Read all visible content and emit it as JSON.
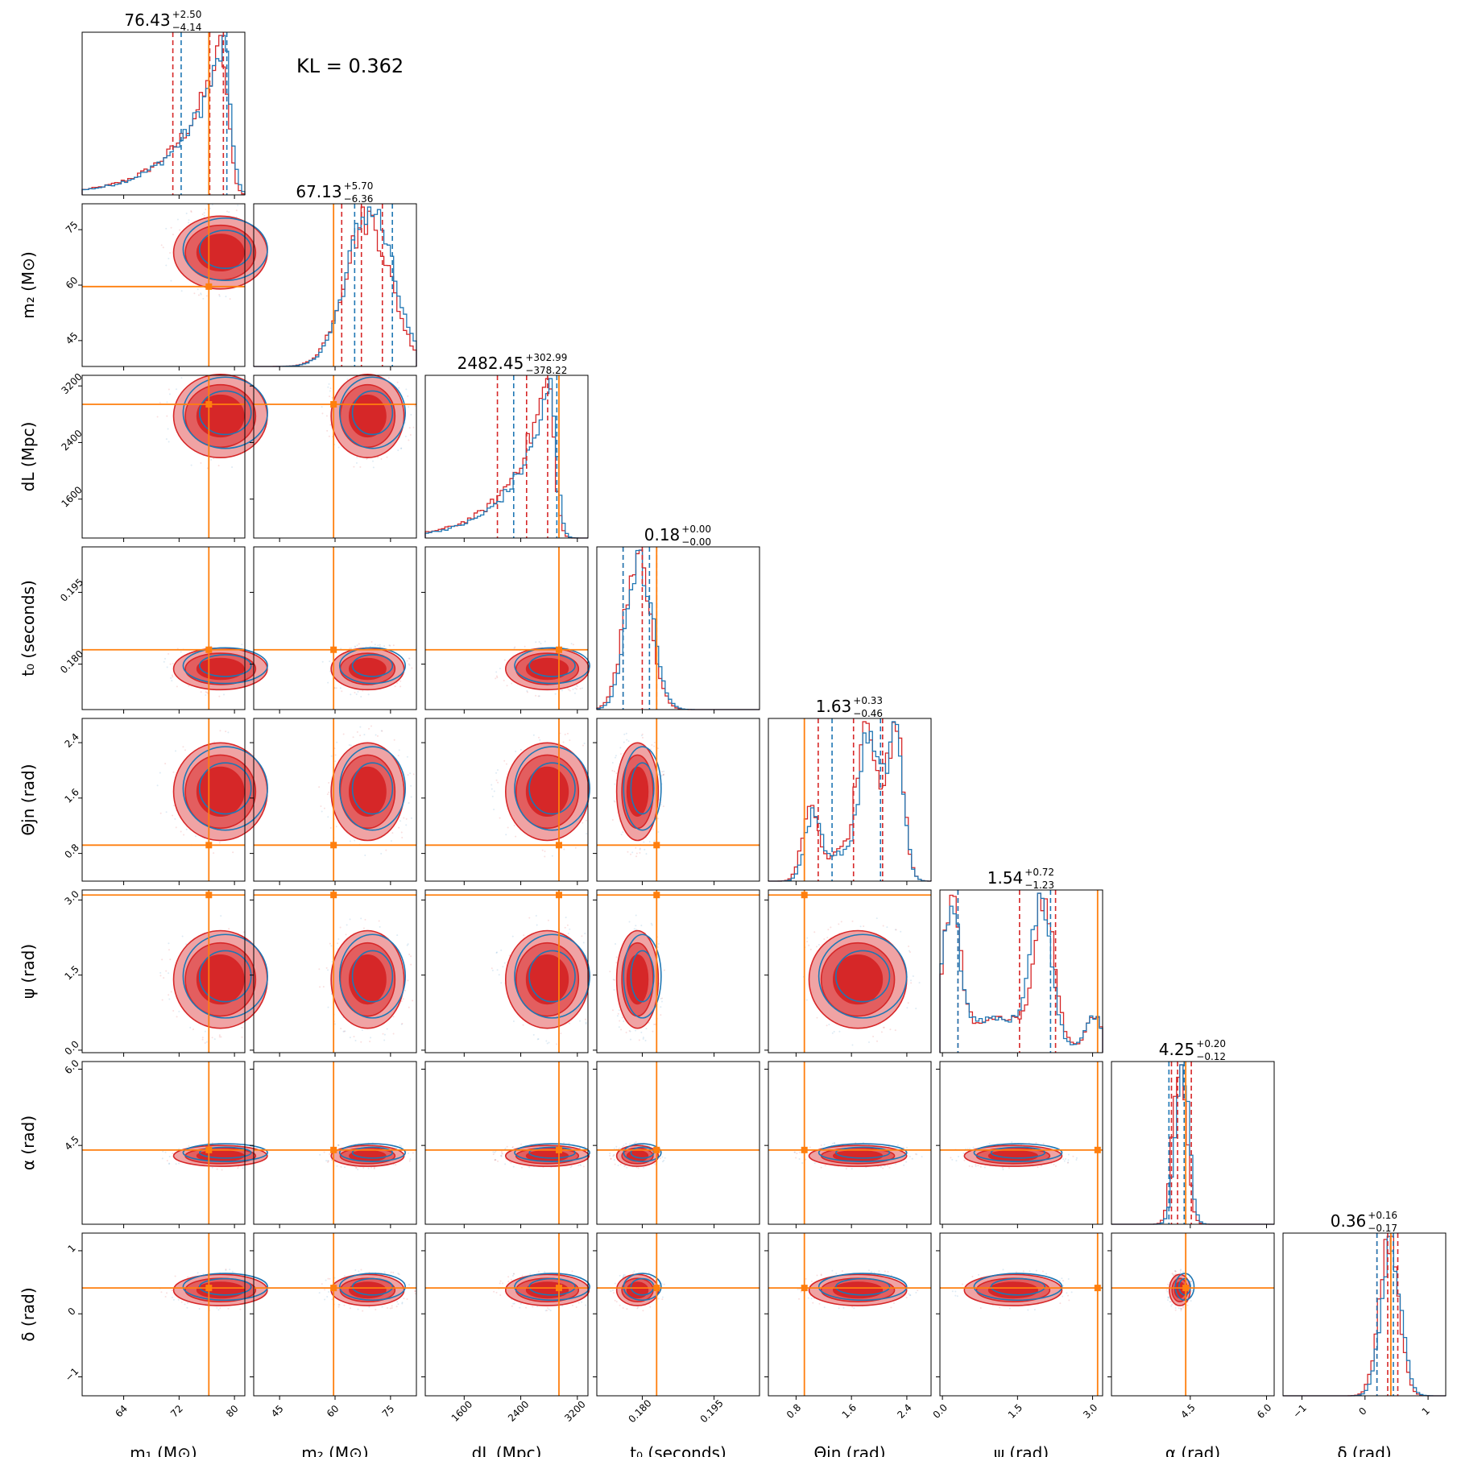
{
  "colors": {
    "red": "#d62728",
    "red_light": "#f0a3a4",
    "red_mid": "#e35e5f",
    "blue": "#1f77b4",
    "orange": "#ff7f0e"
  },
  "kl_text": "KL = 0.362",
  "chart_data": {
    "type": "corner",
    "grid": false,
    "series": [
      {
        "color": "red"
      },
      {
        "color": "blue"
      }
    ],
    "params": [
      {
        "key": "m1",
        "label": "m₁ (M⊙)",
        "ylabel": "",
        "range": [
          58,
          81.5
        ],
        "ticks": [
          64,
          72,
          80
        ],
        "tick_labels": [
          "64",
          "72",
          "80"
        ],
        "median": 76.43,
        "title": "76.43",
        "err_plus": "+2.50",
        "err_minus": "−4.14",
        "truth": 76.3,
        "q_red": [
          71.1,
          78.4
        ],
        "q_blue": [
          72.3,
          78.9
        ],
        "shape": "skew_right",
        "pos": 0.85,
        "width": 0.18
      },
      {
        "key": "m2",
        "label": "m₂ (M⊙)",
        "ylabel": "m₂ (M⊙)",
        "range": [
          38,
          82
        ],
        "ticks": [
          45,
          60,
          75
        ],
        "tick_labels": [
          "45",
          "60",
          "75"
        ],
        "median": 67.13,
        "title": "67.13",
        "err_plus": "+5.70",
        "err_minus": "−6.36",
        "truth": 59.6,
        "q_red": [
          61.8,
          72.8
        ],
        "q_blue": [
          65.3,
          75.5
        ],
        "shape": "normal",
        "pos": 0.7,
        "width": 0.14
      },
      {
        "key": "dL",
        "label": "dL (Mpc)",
        "ylabel": "dL (Mpc)",
        "range": [
          1050,
          3350
        ],
        "ticks": [
          1600,
          2400,
          3200
        ],
        "tick_labels": [
          "1600",
          "2400",
          "3200"
        ],
        "median": 2482.45,
        "title": "2482.45",
        "err_plus": "+302.99",
        "err_minus": "−378.22",
        "truth": 2940,
        "q_red": [
          2070,
          2780
        ],
        "q_blue": [
          2300,
          2910
        ],
        "shape": "skew_right",
        "pos": 0.75,
        "width": 0.16
      },
      {
        "key": "t0",
        "label": "t₀ (seconds)",
        "ylabel": "t₀ (seconds)",
        "range": [
          0.1705,
          0.2045
        ],
        "ticks": [
          0.18,
          0.195
        ],
        "tick_labels": [
          "0.180",
          "0.195"
        ],
        "median": 0.18,
        "title": "0.18",
        "err_plus": "+0.00",
        "err_minus": "−0.00",
        "truth": 0.183,
        "q_red": [
          0.176,
          0.183
        ],
        "q_blue": [
          0.176,
          0.1815
        ],
        "shape": "normal",
        "pos": 0.25,
        "width": 0.08
      },
      {
        "key": "theta_jn",
        "label": "Θjn (rad)",
        "ylabel": "Θjn (rad)",
        "range": [
          0.4,
          2.75
        ],
        "ticks": [
          0.8,
          1.6,
          2.4
        ],
        "tick_labels": [
          "0.8",
          "1.6",
          "2.4"
        ],
        "median": 1.63,
        "title": "1.63",
        "err_plus": "+0.33",
        "err_minus": "−0.46",
        "truth": 0.92,
        "q_red": [
          1.12,
          2.05
        ],
        "q_blue": [
          1.32,
          2.02
        ],
        "shape": "bimodal",
        "pos": 0.62,
        "width": 0.14
      },
      {
        "key": "psi",
        "label": "ψ (rad)",
        "ylabel": "ψ (rad)",
        "range": [
          -0.05,
          3.2
        ],
        "ticks": [
          0.0,
          1.5,
          3.0
        ],
        "tick_labels": [
          "0.0",
          "1.5",
          "3.0"
        ],
        "median": 1.54,
        "title": "1.54",
        "err_plus": "+0.72",
        "err_minus": "−1.23",
        "truth": 3.1,
        "q_red": [
          0.31,
          2.26
        ],
        "q_blue": [
          0.31,
          2.16
        ],
        "shape": "bimodal_psi",
        "pos": 0.5,
        "width": 0.1
      },
      {
        "key": "alpha",
        "label": "α (rad)",
        "ylabel": "α (rad)",
        "range": [
          2.95,
          6.15
        ],
        "ticks": [
          4.5,
          6.0
        ],
        "tick_labels": [
          "4.5",
          "6.0"
        ],
        "median": 4.25,
        "title": "4.25",
        "err_plus": "+0.20",
        "err_minus": "−0.12",
        "truth": 4.41,
        "q_red": [
          4.13,
          4.52
        ],
        "q_blue": [
          4.08,
          4.38
        ],
        "shape": "narrow",
        "pos": 0.42,
        "width": 0.04
      },
      {
        "key": "delta",
        "label": "δ (rad)",
        "ylabel": "δ (rad)",
        "range": [
          -1.3,
          1.28
        ],
        "ticks": [
          -1,
          0,
          1
        ],
        "tick_labels": [
          "−1",
          "0",
          "1"
        ],
        "median": 0.36,
        "title": "0.36",
        "err_plus": "+0.16",
        "err_minus": "−0.17",
        "truth": 0.41,
        "q_red": [
          0.19,
          0.52
        ],
        "q_blue": [
          0.19,
          0.45
        ],
        "shape": "normal",
        "pos": 0.65,
        "width": 0.06
      }
    ]
  }
}
